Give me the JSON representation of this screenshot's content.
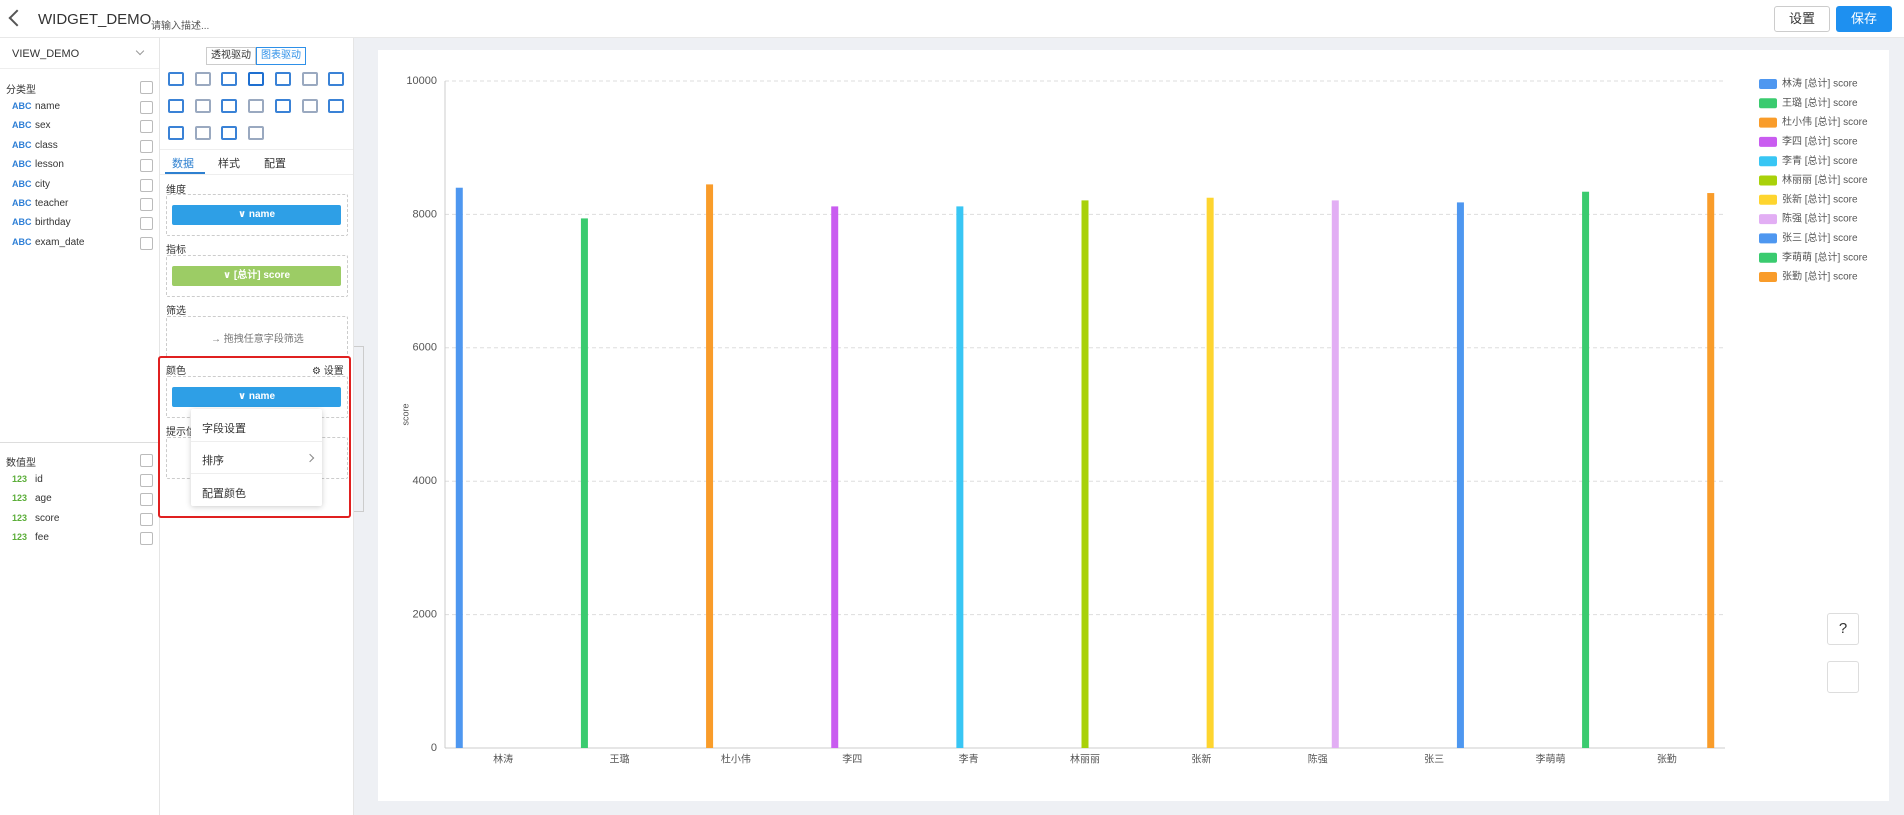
{
  "header": {
    "title": "WIDGET_DEMO",
    "description": "请输入描述...",
    "buttons": [
      "设置",
      "保存"
    ]
  },
  "sidebar": {
    "view": "VIEW_DEMO",
    "dimension_group": {
      "title": "分类型",
      "badge": "ABC",
      "fields": [
        "name",
        "sex",
        "class",
        "lesson",
        "city",
        "teacher",
        "birthday",
        "exam_date"
      ]
    },
    "measure_group": {
      "title": "数值型",
      "badge": "123",
      "fields": [
        "id",
        "age",
        "score",
        "fee"
      ]
    }
  },
  "config": {
    "modes": [
      "透视驱动",
      "图表驱动"
    ],
    "tabs": [
      "数据",
      "样式",
      "配置"
    ],
    "sections": {
      "dimension": {
        "title": "维度",
        "field": "name"
      },
      "metric": {
        "title": "指标",
        "field": "[总计] score"
      },
      "filter": {
        "title": "筛选",
        "hint": "拖拽任意字段筛选"
      },
      "color": {
        "title": "颜色",
        "action": "设置",
        "field": "name"
      },
      "tooltip": {
        "title": "提示信"
      }
    },
    "menu": [
      "字段设置",
      "排序",
      "配置颜色"
    ]
  },
  "help": "?",
  "chart_data": {
    "type": "bar",
    "y_label": "score",
    "categories": [
      "林涛",
      "王璐",
      "杜小伟",
      "李四",
      "李青",
      "林丽丽",
      "张新",
      "陈强",
      "张三",
      "李萌萌",
      "张勤"
    ],
    "ylim": [
      0,
      10000
    ],
    "yticks": [
      0,
      2000,
      4000,
      6000,
      8000,
      10000
    ],
    "grid": true,
    "legend": "top-right",
    "series": [
      {
        "name": "林涛 [总计] score",
        "color": "#4e97f0",
        "values": [
          8400,
          null,
          null,
          null,
          null,
          null,
          null,
          null,
          null,
          null,
          null
        ]
      },
      {
        "name": "王璐 [总计] score",
        "color": "#3acb6f",
        "values": [
          null,
          7940,
          null,
          null,
          null,
          null,
          null,
          null,
          null,
          null,
          null
        ]
      },
      {
        "name": "杜小伟 [总计] score",
        "color": "#f99c2a",
        "values": [
          null,
          null,
          8450,
          null,
          null,
          null,
          null,
          null,
          null,
          null,
          null
        ]
      },
      {
        "name": "李四 [总计] score",
        "color": "#c95cf0",
        "values": [
          null,
          null,
          null,
          8120,
          null,
          null,
          null,
          null,
          null,
          null,
          null
        ]
      },
      {
        "name": "李青 [总计] score",
        "color": "#38c6f4",
        "values": [
          null,
          null,
          null,
          null,
          8120,
          null,
          null,
          null,
          null,
          null,
          null
        ]
      },
      {
        "name": "林丽丽 [总计] score",
        "color": "#a9d10a",
        "values": [
          null,
          null,
          null,
          null,
          null,
          8210,
          null,
          null,
          null,
          null,
          null
        ]
      },
      {
        "name": "张新 [总计] score",
        "color": "#fed52f",
        "values": [
          null,
          null,
          null,
          null,
          null,
          null,
          8250,
          null,
          null,
          null,
          null
        ]
      },
      {
        "name": "陈强 [总计] score",
        "color": "#e2aef4",
        "values": [
          null,
          null,
          null,
          null,
          null,
          null,
          null,
          8210,
          null,
          null,
          null
        ]
      },
      {
        "name": "张三 [总计] score",
        "color": "#4e97f0",
        "values": [
          null,
          null,
          null,
          null,
          null,
          null,
          null,
          null,
          8180,
          null,
          null
        ]
      },
      {
        "name": "李萌萌 [总计] score",
        "color": "#3acb6f",
        "values": [
          null,
          null,
          null,
          null,
          null,
          null,
          null,
          null,
          null,
          8340,
          null
        ]
      },
      {
        "name": "张勤 [总计] score",
        "color": "#f99c2a",
        "values": [
          null,
          null,
          null,
          null,
          null,
          null,
          null,
          null,
          null,
          null,
          8320
        ]
      }
    ]
  }
}
